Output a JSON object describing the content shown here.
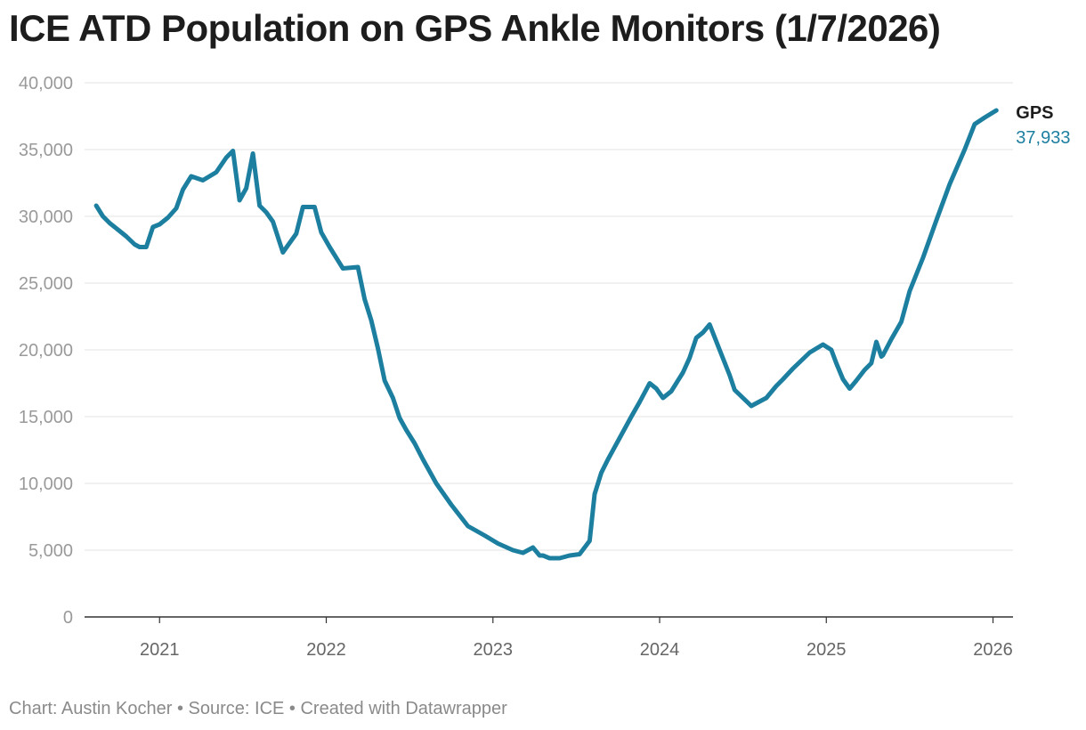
{
  "header": {
    "title": "ICE ATD Population on GPS Ankle Monitors (1/7/2026)"
  },
  "footer": {
    "text": "Chart: Austin Kocher • Source: ICE • Created with Datawrapper"
  },
  "chart_data": {
    "type": "line",
    "title": "ICE ATD Population on GPS Ankle Monitors (1/7/2026)",
    "xlabel": "",
    "ylabel": "",
    "ylim": [
      0,
      40000
    ],
    "xlim": [
      2020.55,
      2026.12
    ],
    "y_ticks": [
      0,
      5000,
      10000,
      15000,
      20000,
      25000,
      30000,
      35000,
      40000
    ],
    "y_tick_labels": [
      "0",
      "5,000",
      "10,000",
      "15,000",
      "20,000",
      "25,000",
      "30,000",
      "35,000",
      "40,000"
    ],
    "x_ticks": [
      2021,
      2022,
      2023,
      2024,
      2025,
      2026
    ],
    "x_tick_labels": [
      "2021",
      "2022",
      "2023",
      "2024",
      "2025",
      "2026"
    ],
    "grid": true,
    "line_color": "#1d7fa0",
    "series": [
      {
        "name": "GPS",
        "end_label": "37,933",
        "x": [
          2020.62,
          2020.66,
          2020.7,
          2020.75,
          2020.8,
          2020.85,
          2020.88,
          2020.92,
          2020.96,
          2021.0,
          2021.05,
          2021.1,
          2021.14,
          2021.19,
          2021.26,
          2021.34,
          2021.4,
          2021.44,
          2021.48,
          2021.52,
          2021.56,
          2021.6,
          2021.64,
          2021.68,
          2021.74,
          2021.82,
          2021.86,
          2021.93,
          2021.97,
          2022.02,
          2022.1,
          2022.19,
          2022.23,
          2022.27,
          2022.31,
          2022.35,
          2022.4,
          2022.44,
          2022.48,
          2022.53,
          2022.58,
          2022.66,
          2022.75,
          2022.85,
          2022.95,
          2023.03,
          2023.12,
          2023.18,
          2023.24,
          2023.28,
          2023.3,
          2023.34,
          2023.4,
          2023.46,
          2023.52,
          2023.58,
          2023.61,
          2023.65,
          2023.69,
          2023.76,
          2023.83,
          2023.88,
          2023.94,
          2023.98,
          2024.02,
          2024.07,
          2024.14,
          2024.18,
          2024.22,
          2024.26,
          2024.3,
          2024.36,
          2024.42,
          2024.45,
          2024.55,
          2024.61,
          2024.64,
          2024.7,
          2024.74,
          2024.8,
          2024.9,
          2024.98,
          2025.03,
          2025.06,
          2025.1,
          2025.14,
          2025.18,
          2025.23,
          2025.27,
          2025.3,
          2025.33,
          2025.34,
          2025.39,
          2025.45,
          2025.5,
          2025.58,
          2025.66,
          2025.74,
          2025.83,
          2025.89,
          2025.95,
          2026.02
        ],
        "y": [
          30800,
          30000,
          29500,
          29000,
          28500,
          27900,
          27700,
          27700,
          29200,
          29400,
          29900,
          30600,
          32000,
          33000,
          32700,
          33300,
          34400,
          34900,
          31200,
          32100,
          34700,
          30800,
          30300,
          29600,
          27300,
          28700,
          30700,
          30700,
          28800,
          27700,
          26100,
          26200,
          23800,
          22200,
          20100,
          17700,
          16400,
          14900,
          14000,
          13000,
          11800,
          10000,
          8400,
          6800,
          6100,
          5500,
          5000,
          4800,
          5200,
          4600,
          4600,
          4400,
          4400,
          4600,
          4700,
          5700,
          9200,
          10800,
          11800,
          13400,
          15000,
          16100,
          17500,
          17100,
          16400,
          16900,
          18300,
          19400,
          20900,
          21300,
          21900,
          20000,
          18100,
          17000,
          15800,
          16200,
          16400,
          17300,
          17800,
          18600,
          19800,
          20400,
          20000,
          19000,
          17800,
          17100,
          17700,
          18500,
          19000,
          20600,
          19500,
          19600,
          20800,
          22100,
          24400,
          26900,
          29700,
          32400,
          35000,
          36900,
          37400,
          37933
        ]
      }
    ]
  }
}
